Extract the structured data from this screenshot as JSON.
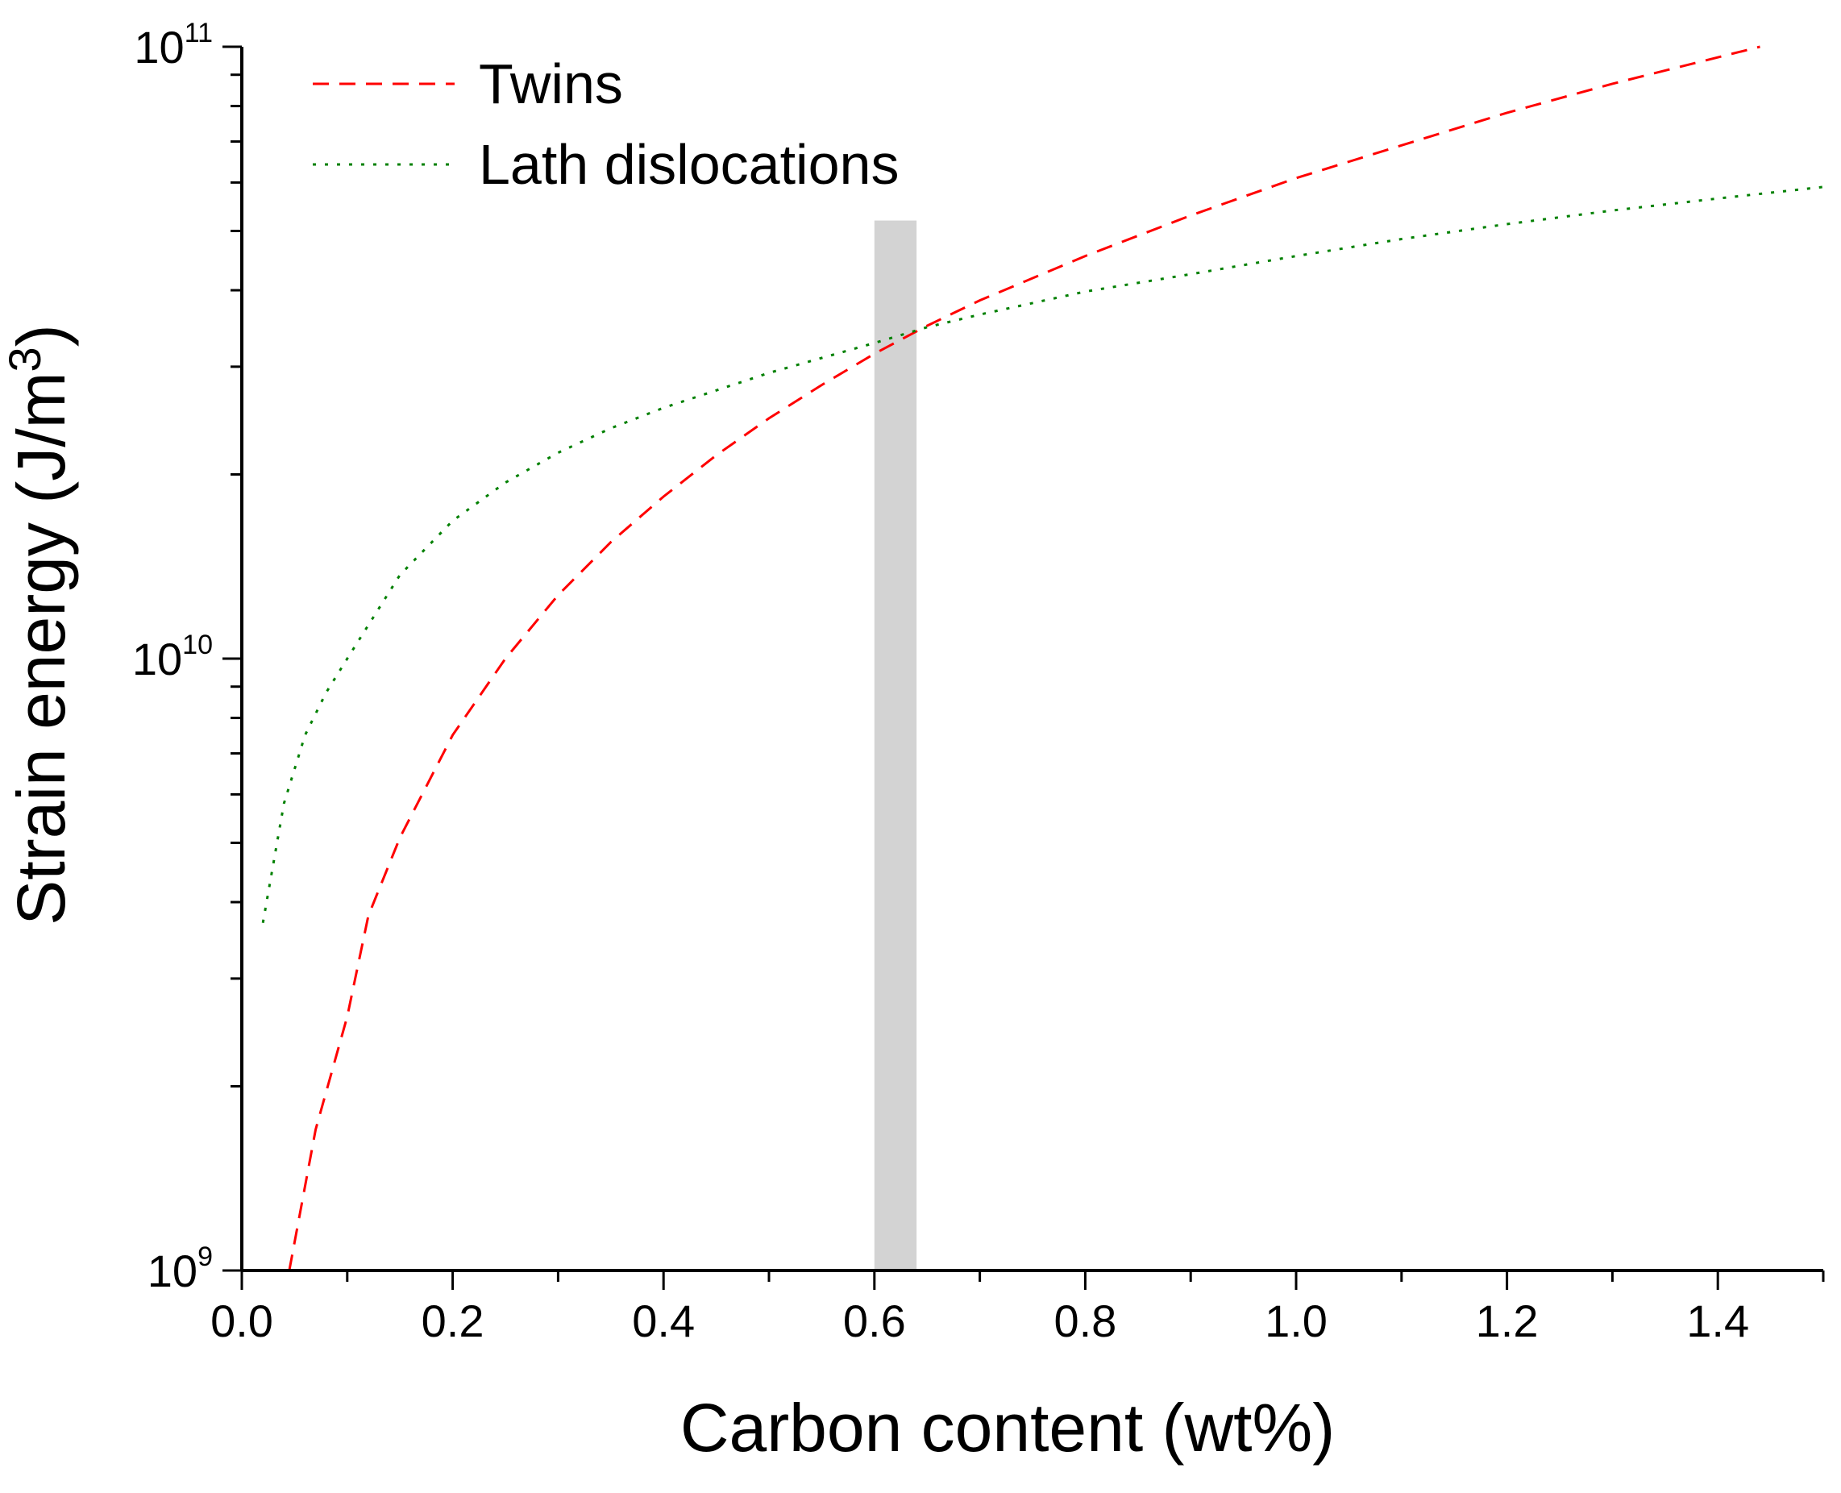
{
  "chart_data": {
    "type": "line",
    "xlabel": "Carbon content (wt%)",
    "ylabel_main": "Strain energy (J/m",
    "ylabel_sup": "3",
    "ylabel_close": ")",
    "xlim": [
      0,
      1.5
    ],
    "ylim": [
      1000000000,
      100000000000
    ],
    "yscale": "log",
    "grid": false,
    "legend_position": "top-left",
    "x_ticks": [
      "0.0",
      "0.2",
      "0.4",
      "0.6",
      "0.8",
      "1.0",
      "1.2",
      "1.4"
    ],
    "y_ticks": [
      {
        "value": 1000000000,
        "base": "10",
        "exp": "9"
      },
      {
        "value": 10000000000,
        "base": "10",
        "exp": "10"
      },
      {
        "value": 100000000000,
        "base": "10",
        "exp": "11"
      }
    ],
    "highlight_band": {
      "x_start": 0.6,
      "x_end": 0.64,
      "y_top": 52000000000,
      "color": "#d3d3d3"
    },
    "series": [
      {
        "name": "Twins",
        "color": "#ff0000",
        "style": "dashed",
        "x": [
          0.045,
          0.07,
          0.1,
          0.12,
          0.15,
          0.2,
          0.25,
          0.3,
          0.35,
          0.4,
          0.45,
          0.5,
          0.55,
          0.6,
          0.65,
          0.7,
          0.8,
          0.9,
          1.0,
          1.1,
          1.2,
          1.3,
          1.44
        ],
        "y": [
          1000000000,
          1700000000,
          2600000000,
          3800000000,
          5100000000,
          7500000000,
          10000000000,
          12700000000,
          15500000000,
          18400000000,
          21500000000,
          24700000000,
          28000000000,
          31500000000,
          35000000000,
          38500000000,
          45500000000,
          53000000000,
          61000000000,
          69000000000,
          78000000000,
          87000000000,
          100000000000
        ]
      },
      {
        "name": "Lath dislocations",
        "color": "#008000",
        "style": "dotted",
        "x": [
          0.02,
          0.04,
          0.06,
          0.08,
          0.1,
          0.15,
          0.2,
          0.25,
          0.3,
          0.35,
          0.4,
          0.5,
          0.6,
          0.65,
          0.7,
          0.8,
          0.9,
          1.0,
          1.1,
          1.2,
          1.3,
          1.4,
          1.5
        ],
        "y": [
          3700000000,
          5800000000,
          7500000000,
          8800000000,
          10000000000,
          13700000000,
          16800000000,
          19400000000,
          21700000000,
          23800000000,
          25700000000,
          29300000000,
          32800000000,
          34800000000,
          36500000000,
          39800000000,
          42500000000,
          45500000000,
          48500000000,
          51300000000,
          54000000000,
          56500000000,
          59000000000
        ]
      }
    ]
  }
}
